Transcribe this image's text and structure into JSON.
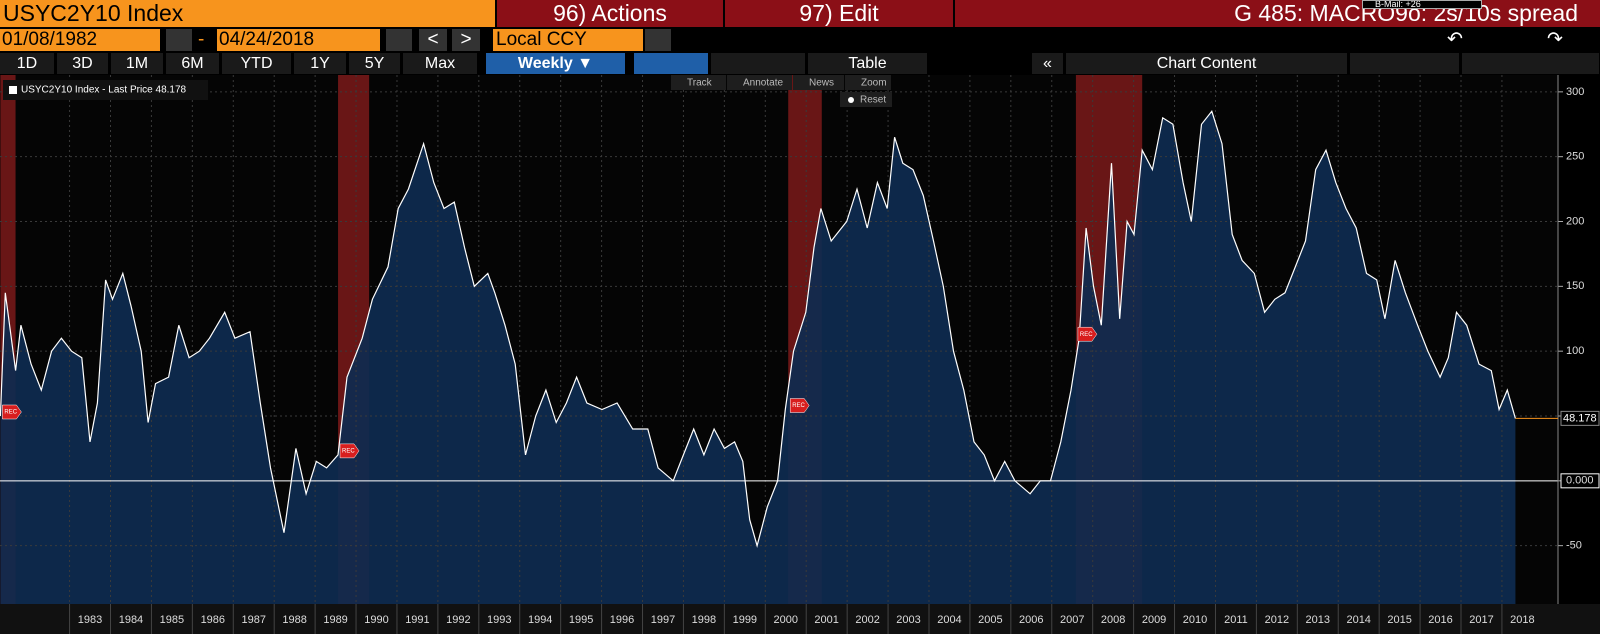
{
  "ui": {
    "security": "USYC2Y10 Index",
    "actions": "96) Actions",
    "edit": "97) Edit",
    "page_title": "G 485: MACRO9o: 2s/10s spread",
    "mail": "B-Mail: +26",
    "start_date": "01/08/1982",
    "date_sep": "-",
    "end_date": "04/24/2018",
    "prev": "<",
    "next": ">",
    "currency": "Local CCY",
    "ranges": [
      "1D",
      "3D",
      "1M",
      "6M",
      "YTD",
      "1Y",
      "5Y",
      "Max"
    ],
    "frequency": "Weekly",
    "table": "Table",
    "collapse": "«",
    "chart_content": "Chart Content",
    "tools": [
      "Track",
      "Annotate",
      "News",
      "Zoom"
    ],
    "reset": "Reset"
  },
  "chart_data": {
    "type": "area",
    "series": [
      {
        "name": "USYC2Y10 Index - Last Price 48.178",
        "color": "#ffffff",
        "fill": "#0e2b50",
        "x": [
          1981.31,
          1981.43,
          1981.68,
          1981.81,
          1982.06,
          1982.31,
          1982.56,
          1982.8,
          1983.05,
          1983.3,
          1983.5,
          1983.68,
          1983.88,
          1984.05,
          1984.3,
          1984.5,
          1984.75,
          1984.92,
          1985.1,
          1985.42,
          1985.67,
          1985.92,
          1986.17,
          1986.42,
          1986.79,
          1987.04,
          1987.41,
          1987.66,
          1987.91,
          1988.24,
          1988.53,
          1988.78,
          1989.03,
          1989.28,
          1989.56,
          1989.78,
          1990.15,
          1990.4,
          1990.78,
          1991.03,
          1991.28,
          1991.65,
          1991.9,
          1992.15,
          1992.4,
          1992.65,
          1992.89,
          1993.22,
          1993.39,
          1993.64,
          1993.89,
          1994.14,
          1994.39,
          1994.64,
          1994.89,
          1995.14,
          1995.39,
          1995.64,
          1996.01,
          1996.38,
          1996.76,
          1997.13,
          1997.38,
          1997.75,
          1998.0,
          1998.25,
          1998.5,
          1998.75,
          1999.0,
          1999.25,
          1999.45,
          1999.62,
          1999.8,
          2000.05,
          2000.3,
          2000.49,
          2000.69,
          2000.99,
          2001.19,
          2001.36,
          2001.61,
          2001.99,
          2002.24,
          2002.49,
          2002.74,
          2002.98,
          2003.16,
          2003.36,
          2003.61,
          2003.86,
          2004.11,
          2004.35,
          2004.6,
          2004.85,
          2005.1,
          2005.35,
          2005.6,
          2005.85,
          2006.1,
          2006.47,
          2006.72,
          2006.97,
          2007.22,
          2007.47,
          2007.67,
          2007.84,
          2008.02,
          2008.21,
          2008.46,
          2008.66,
          2008.84,
          2009.01,
          2009.21,
          2009.46,
          2009.71,
          2009.96,
          2010.21,
          2010.41,
          2010.66,
          2010.91,
          2011.16,
          2011.41,
          2011.65,
          2011.95,
          2012.2,
          2012.45,
          2012.7,
          2012.95,
          2013.2,
          2013.45,
          2013.7,
          2013.94,
          2014.19,
          2014.44,
          2014.69,
          2014.94,
          2015.14,
          2015.39,
          2015.64,
          2015.94,
          2016.19,
          2016.49,
          2016.69,
          2016.89,
          2017.14,
          2017.44,
          2017.74,
          2017.93,
          2018.13,
          2018.33
        ],
        "values": [
          50,
          145,
          85,
          120,
          90,
          70,
          100,
          110,
          100,
          95,
          30,
          60,
          155,
          140,
          160,
          135,
          100,
          45,
          75,
          80,
          120,
          95,
          100,
          110,
          130,
          110,
          115,
          60,
          10,
          -40,
          25,
          -10,
          15,
          10,
          20,
          80,
          110,
          140,
          165,
          210,
          225,
          260,
          230,
          210,
          215,
          180,
          150,
          160,
          145,
          120,
          90,
          20,
          50,
          70,
          45,
          60,
          80,
          60,
          55,
          60,
          40,
          40,
          10,
          0,
          20,
          40,
          20,
          40,
          25,
          30,
          15,
          -30,
          -50,
          -20,
          0,
          55,
          100,
          130,
          180,
          210,
          185,
          200,
          225,
          195,
          230,
          210,
          265,
          245,
          240,
          220,
          185,
          150,
          100,
          70,
          30,
          20,
          0,
          15,
          0,
          -10,
          0,
          0,
          30,
          70,
          110,
          195,
          150,
          120,
          245,
          125,
          200,
          190,
          255,
          240,
          280,
          275,
          230,
          200,
          275,
          285,
          260,
          190,
          170,
          160,
          130,
          140,
          145,
          165,
          185,
          240,
          255,
          230,
          210,
          195,
          160,
          155,
          125,
          170,
          145,
          120,
          100,
          80,
          95,
          130,
          120,
          90,
          85,
          55,
          70,
          48.178
        ]
      }
    ],
    "recessions": [
      {
        "start": 1981.31,
        "end": 1981.68,
        "label": "REC"
      },
      {
        "start": 1989.56,
        "end": 1990.32,
        "label": "REC"
      },
      {
        "start": 2000.56,
        "end": 2001.38,
        "label": "REC"
      },
      {
        "start": 2007.59,
        "end": 2009.21,
        "label": "REC"
      }
    ],
    "recession_color": "#8b1c1c",
    "xlim": [
      1981.3,
      2019.37
    ],
    "xticks": [
      1983,
      1984,
      1985,
      1986,
      1987,
      1988,
      1989,
      1990,
      1991,
      1992,
      1993,
      1994,
      1995,
      1996,
      1997,
      1998,
      1999,
      2000,
      2001,
      2002,
      2003,
      2004,
      2005,
      2006,
      2007,
      2008,
      2009,
      2010,
      2011,
      2012,
      2013,
      2014,
      2015,
      2016,
      2017,
      2018
    ],
    "ylim": [
      -95,
      313
    ],
    "yticks": [
      -50,
      {
        "value": 0,
        "label": "0.000"
      },
      50,
      100,
      150,
      200,
      250,
      300
    ],
    "grid": true,
    "legend": "top-left",
    "last_price_color": "#f7941d"
  }
}
